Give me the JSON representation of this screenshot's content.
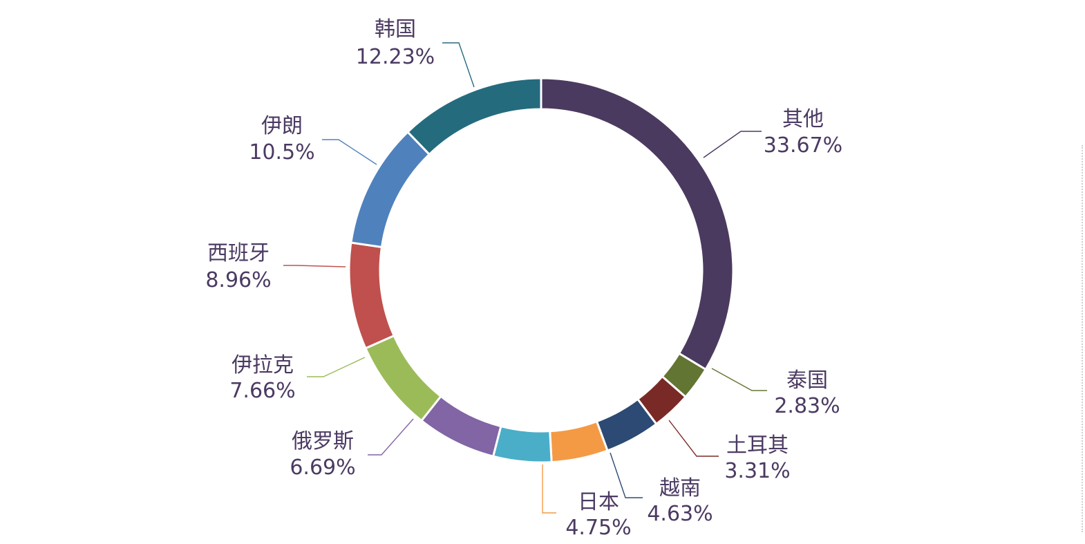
{
  "chart_data": {
    "type": "pie",
    "variant": "donut",
    "title": "",
    "slices": [
      {
        "label": "其他",
        "value": 33.67,
        "value_label": "33.67%",
        "color": "#4b3a5f"
      },
      {
        "label": "泰国",
        "value": 2.83,
        "value_label": "2.83%",
        "color": "#637532"
      },
      {
        "label": "土耳其",
        "value": 3.31,
        "value_label": "3.31%",
        "color": "#7a2a26"
      },
      {
        "label": "越南",
        "value": 4.63,
        "value_label": "4.63%",
        "color": "#2c4a73"
      },
      {
        "label": "日本",
        "value": 4.75,
        "value_label": "4.75%",
        "color": "#f49a45"
      },
      {
        "label": "",
        "value": 4.89,
        "value_label": "",
        "color": "#4aaec8"
      },
      {
        "label": "俄罗斯",
        "value": 6.69,
        "value_label": "6.69%",
        "color": "#8165a4"
      },
      {
        "label": "伊拉克",
        "value": 7.66,
        "value_label": "7.66%",
        "color": "#9bbb59"
      },
      {
        "label": "西班牙",
        "value": 8.96,
        "value_label": "8.96%",
        "color": "#c0504d"
      },
      {
        "label": "伊朗",
        "value": 10.5,
        "value_label": "10.5%",
        "color": "#4f81bd"
      },
      {
        "label": "韩国",
        "value": 12.23,
        "value_label": "12.23%",
        "color": "#256b7e"
      }
    ],
    "legend": "none"
  }
}
